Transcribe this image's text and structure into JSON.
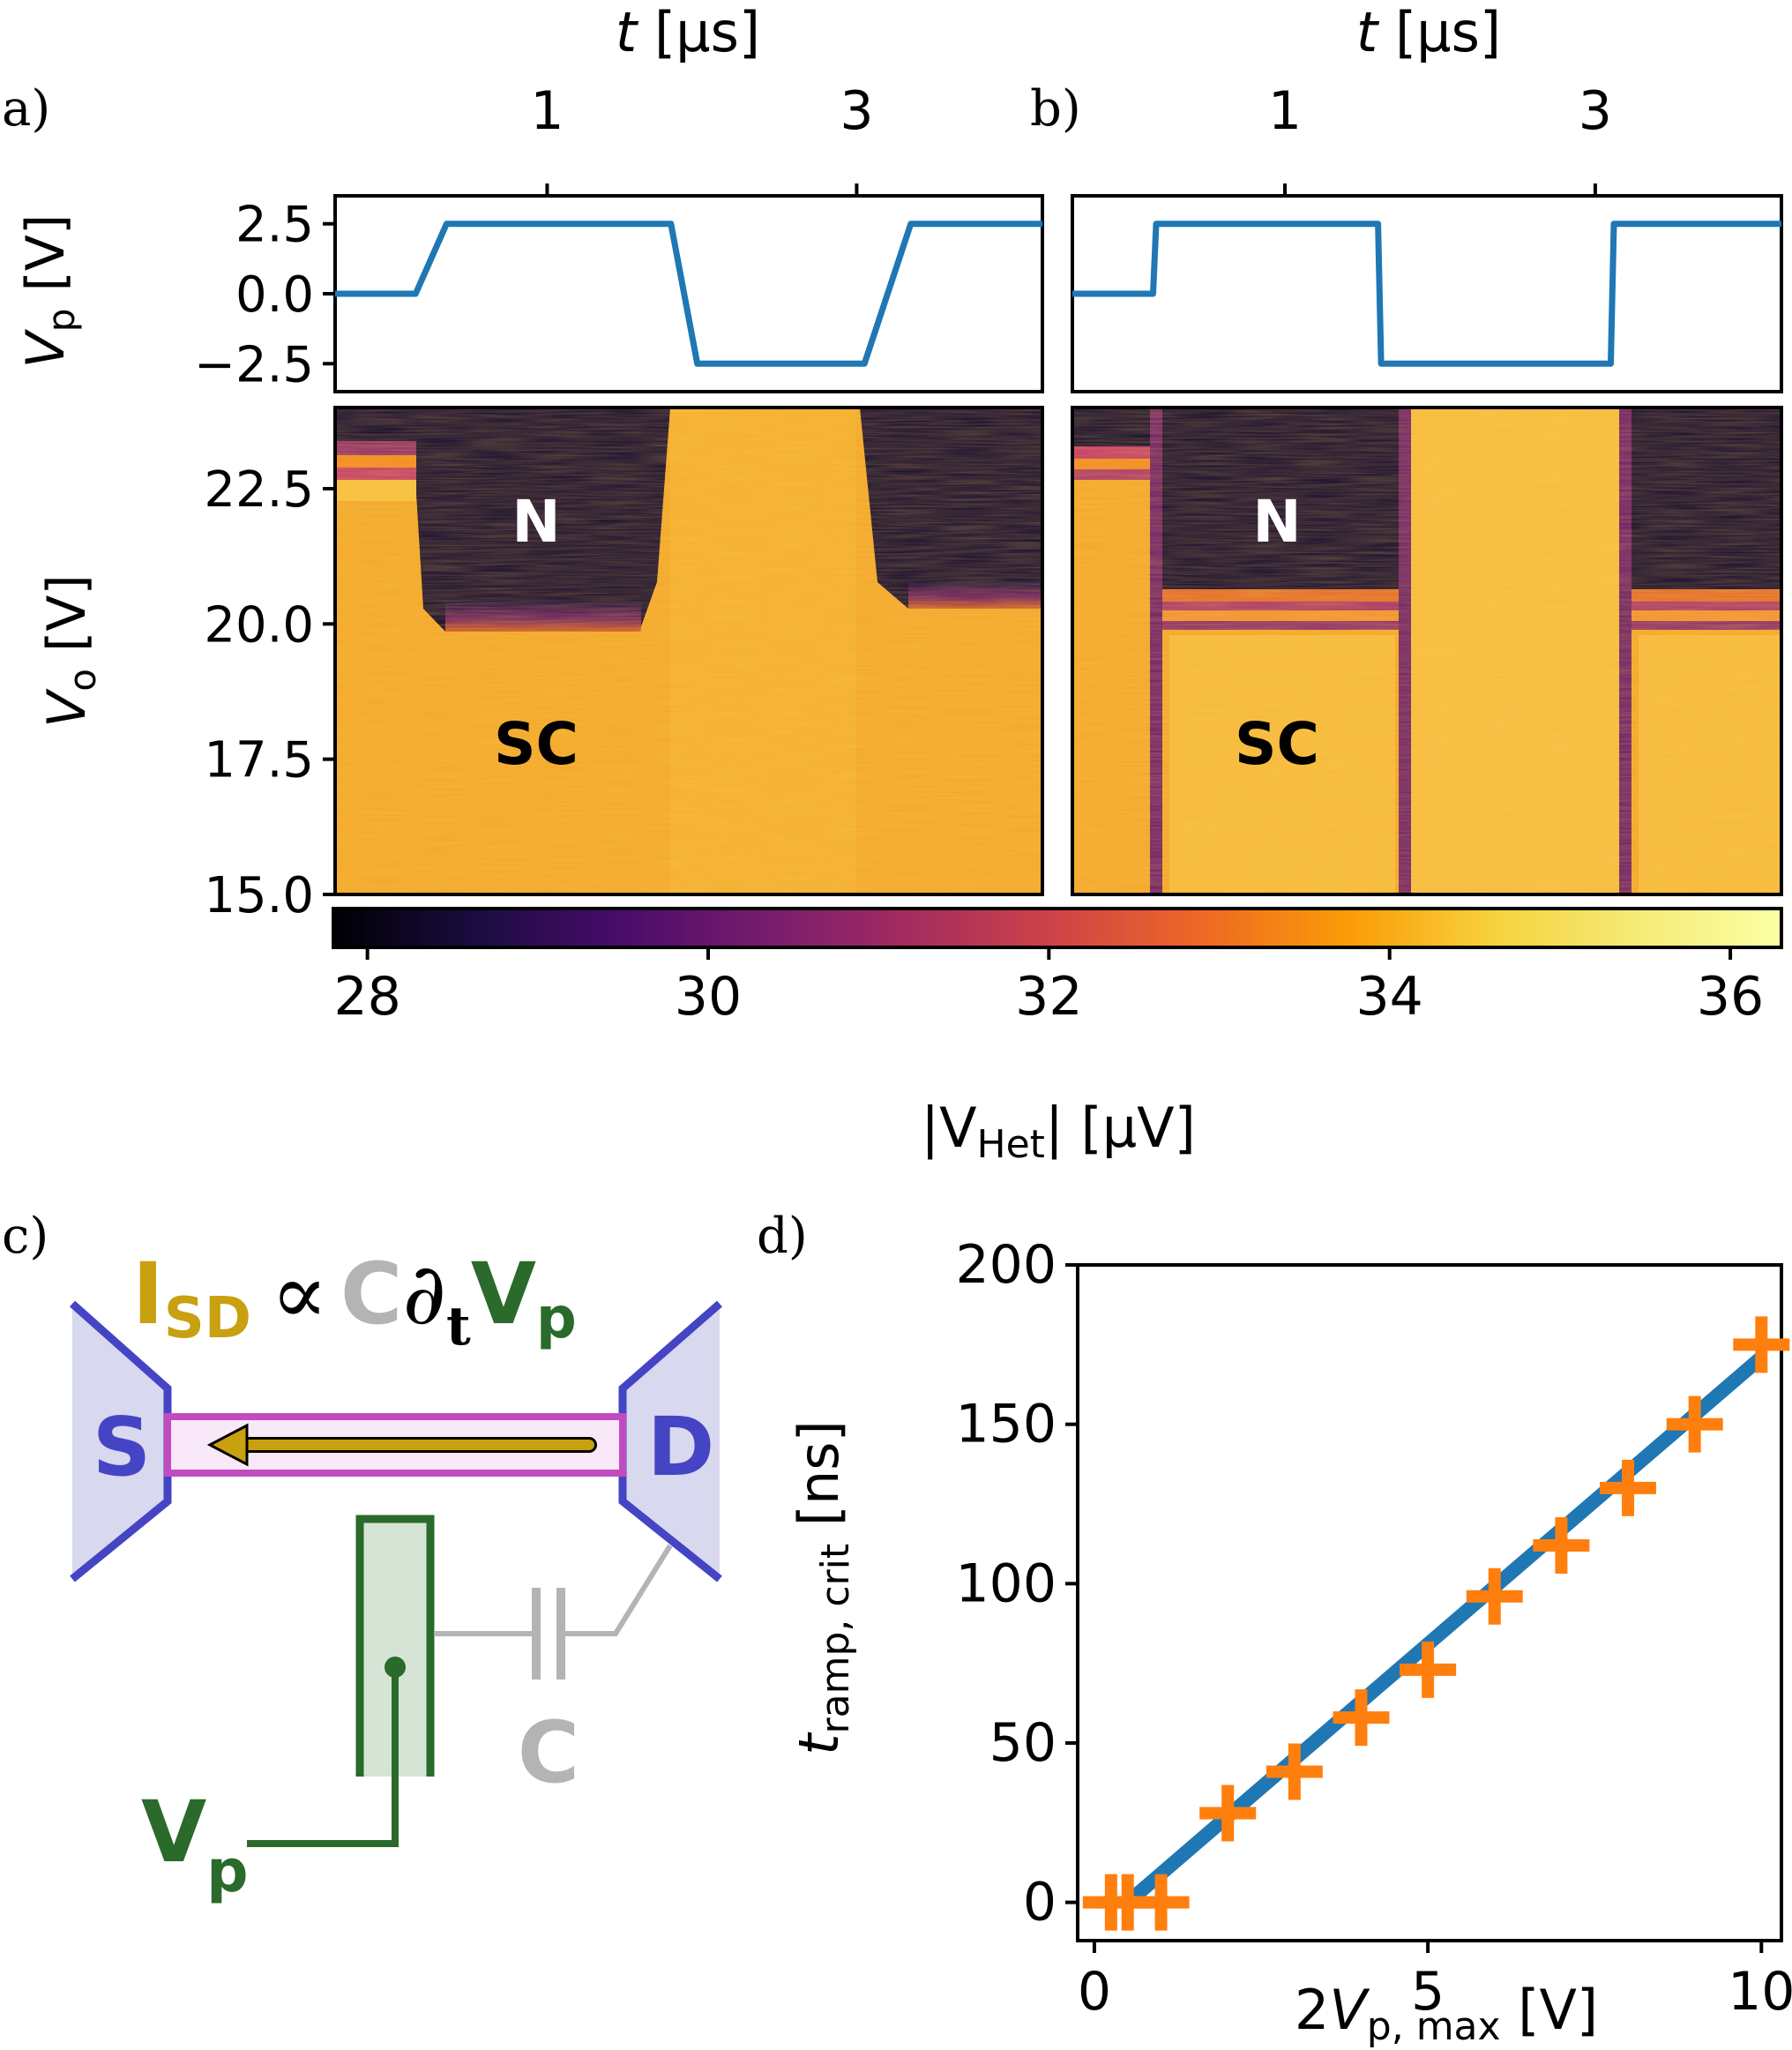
{
  "panel_labels": {
    "a": "a)",
    "b": "b)",
    "c": "c)",
    "d": "d)"
  },
  "region_labels": {
    "normal": "N",
    "superconducting": "SC"
  },
  "circuit": {
    "equation": {
      "current": "I",
      "current_sub": "SD",
      "proportional": "∝",
      "capacitance": "C",
      "partial": "∂",
      "partial_sub": "t",
      "voltage": "V",
      "voltage_sub": "p"
    },
    "source_label": "S",
    "drain_label": "D",
    "capacitor_label": "C",
    "gate_label": "V",
    "gate_sub": "p"
  },
  "colors": {
    "trace_blue": "#1f77b4",
    "marker_orange": "#ff7f0e",
    "contact_blue": "#4444c4",
    "contact_fill": "#d8d8ee",
    "nanowire_magenta": "#c04cc0",
    "current_gold": "#c8a010",
    "gate_green": "#2a6a2a",
    "capacitor_gray": "#b4b4b4"
  },
  "chart_data": [
    {
      "id": "a_top",
      "type": "line",
      "xlabel_italic": "t",
      "xlabel_rest": " [µs]",
      "xticks": [
        "1",
        "3"
      ],
      "xtick_values": [
        1,
        3
      ],
      "xlim": [
        -0.37,
        4.2
      ],
      "ylabel_main": "V",
      "ylabel_sub": "p",
      "ylabel_unit": " [V]",
      "yticks": [
        "2.5",
        "0.0",
        "−2.5"
      ],
      "ytick_values": [
        2.5,
        0.0,
        -2.5
      ],
      "ylim": [
        -3.5,
        3.5
      ],
      "x": [
        -0.37,
        0.15,
        0.35,
        0.8,
        1.8,
        1.97,
        3.05,
        3.35,
        4.2
      ],
      "y": [
        0,
        0,
        2.5,
        2.5,
        2.5,
        -2.5,
        -2.5,
        2.5,
        2.5
      ]
    },
    {
      "id": "b_top",
      "type": "line",
      "xlabel_italic": "t",
      "xlabel_rest": " [µs]",
      "xticks": [
        "1",
        "3"
      ],
      "xtick_values": [
        1,
        3
      ],
      "xlim": [
        -0.37,
        4.2
      ],
      "x": [
        -0.37,
        0.15,
        0.17,
        1.6,
        1.62,
        3.1,
        3.12,
        4.2
      ],
      "y": [
        0,
        0,
        2.5,
        2.5,
        -2.5,
        -2.5,
        2.5,
        2.5
      ]
    },
    {
      "id": "a_heatmap",
      "type": "heatmap",
      "ylabel_main": "V",
      "ylabel_sub": "o",
      "ylabel_unit": " [V]",
      "yticks": [
        "22.5",
        "20.0",
        "17.5",
        "15.0"
      ],
      "ytick_values": [
        22.5,
        20.0,
        17.5,
        15.0
      ],
      "ylim": [
        15.0,
        24.0
      ],
      "labels": [
        "N",
        "SC"
      ]
    },
    {
      "id": "b_heatmap",
      "type": "heatmap",
      "ylim": [
        15.0,
        24.0
      ],
      "labels": [
        "N",
        "SC"
      ]
    },
    {
      "id": "colorbar",
      "type": "colorbar",
      "colormap": "inferno",
      "range": [
        27.8,
        36.3
      ],
      "ticks": [
        "28",
        "30",
        "32",
        "34",
        "36"
      ],
      "tick_values": [
        28,
        30,
        32,
        34,
        36
      ],
      "label_prefix": "|V",
      "label_sub": "Het",
      "label_suffix": "| [µV]"
    },
    {
      "id": "d",
      "type": "scatter",
      "xlabel_prefix": "2",
      "xlabel_main": "V",
      "xlabel_sub": "p, max",
      "xlabel_unit": " [V]",
      "ylabel_main": "t",
      "ylabel_sub": "ramp, crit",
      "ylabel_unit": " [ns]",
      "xlim": [
        -0.25,
        10.3
      ],
      "ylim": [
        -12,
        200
      ],
      "xticks": [
        "0",
        "5",
        "10"
      ],
      "xtick_values": [
        0,
        5,
        10
      ],
      "yticks": [
        "0",
        "50",
        "100",
        "150",
        "200"
      ],
      "ytick_values": [
        0,
        50,
        100,
        150,
        200
      ],
      "points": {
        "x": [
          0.25,
          0.5,
          1,
          2,
          3,
          4,
          5,
          6,
          7,
          8,
          9,
          10
        ],
        "y": [
          0,
          0,
          0,
          28,
          41,
          58,
          73,
          96,
          112,
          130,
          150,
          175
        ]
      },
      "fit": {
        "x": [
          0.5,
          10
        ],
        "y": [
          0,
          171
        ]
      }
    }
  ]
}
